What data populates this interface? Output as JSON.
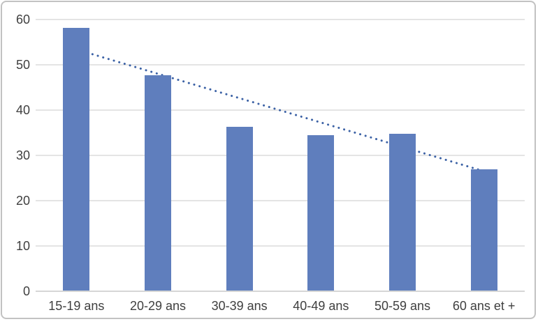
{
  "chart_data": {
    "type": "bar",
    "title": "",
    "xlabel": "",
    "ylabel": "",
    "categories": [
      "15-19 ans",
      "20-29 ans",
      "30-39 ans",
      "40-49 ans",
      "50-59 ans",
      "60 ans et +"
    ],
    "values": [
      58.2,
      47.7,
      36.3,
      34.5,
      34.8,
      26.9
    ],
    "ylim": [
      0,
      60
    ],
    "yticks": [
      0,
      10,
      20,
      30,
      40,
      50,
      60
    ],
    "grid": "horizontal",
    "legend": "none",
    "bar_color": "#5f7ebd",
    "trendline": {
      "type": "linear",
      "style": "dotted",
      "color": "#3b61a5",
      "start_value": 53.4,
      "end_value": 26.5
    },
    "colors": {
      "background": "#ffffff",
      "gridline": "#e4e4e4",
      "axis_line": "#d6d6d6",
      "tick_label": "#3f3f3f",
      "frame_border": "#c2c2c2"
    }
  }
}
